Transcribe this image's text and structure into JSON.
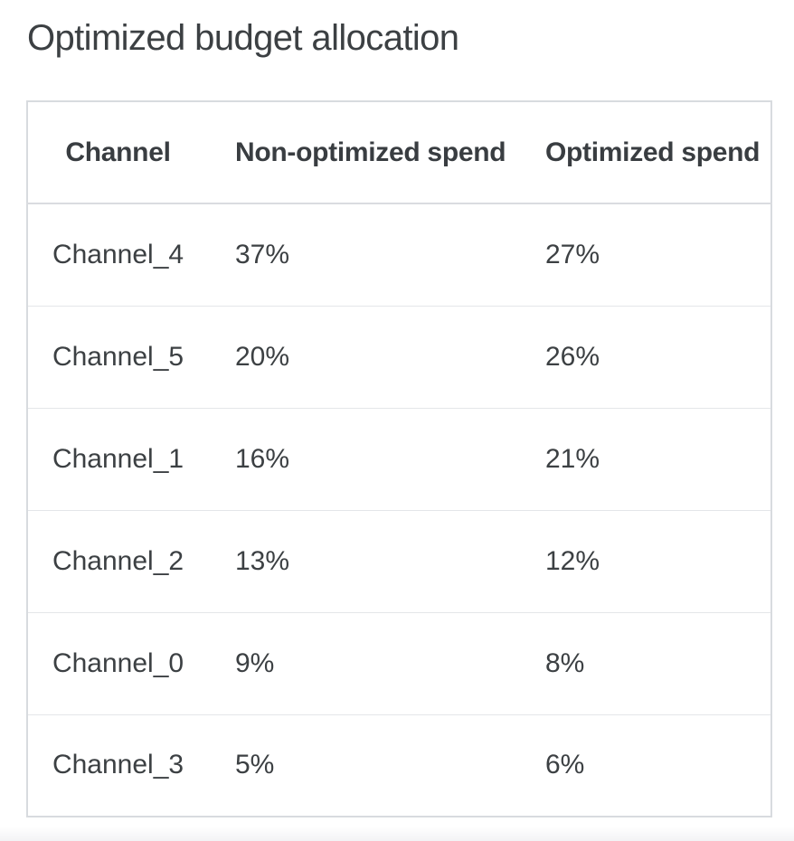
{
  "page": {
    "title": "Optimized budget allocation"
  },
  "chart_data": {
    "type": "table",
    "title": "Optimized budget allocation",
    "columns": [
      "Channel",
      "Non-optimized spend",
      "Optimized spend"
    ],
    "rows": [
      {
        "channel": "Channel_4",
        "non_optimized_spend": "37%",
        "optimized_spend": "27%"
      },
      {
        "channel": "Channel_5",
        "non_optimized_spend": "20%",
        "optimized_spend": "26%"
      },
      {
        "channel": "Channel_1",
        "non_optimized_spend": "16%",
        "optimized_spend": "21%"
      },
      {
        "channel": "Channel_2",
        "non_optimized_spend": "13%",
        "optimized_spend": "12%"
      },
      {
        "channel": "Channel_0",
        "non_optimized_spend": "9%",
        "optimized_spend": "8%"
      },
      {
        "channel": "Channel_3",
        "non_optimized_spend": "5%",
        "optimized_spend": "6%"
      }
    ],
    "values_numeric": {
      "non_optimized_spend_pct": [
        37,
        20,
        16,
        13,
        9,
        5
      ],
      "optimized_spend_pct": [
        27,
        26,
        21,
        12,
        8,
        6
      ]
    },
    "layout": {
      "first_column_align": "center",
      "other_columns_align": "left",
      "grid": "horizontal-dividers-only"
    }
  },
  "colors": {
    "background": "#ffffff",
    "title_text": "#3c4043",
    "header_text": "#393d41",
    "cell_text": "#3c4043",
    "table_border": "#d8dbdf",
    "row_divider": "#e4e6e9"
  }
}
